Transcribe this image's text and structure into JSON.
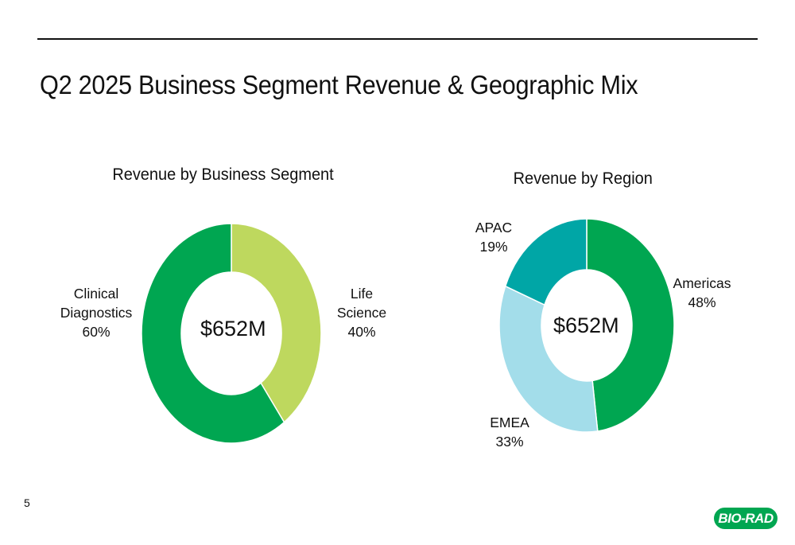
{
  "page_title": "Q2 2025 Business Segment Revenue & Geographic Mix",
  "page_number": "5",
  "logo_text": "BIO-RAD",
  "chart_data": [
    {
      "type": "pie",
      "donut": true,
      "title": "Revenue by Business Segment",
      "center_label": "$652M",
      "slices": [
        {
          "name": "Life",
          "name2": "Science",
          "value": 40,
          "label": "40%",
          "color": "#BED85E"
        },
        {
          "name": "Clinical",
          "name2": "Diagnostics",
          "value": 60,
          "label": "60%",
          "color": "#00A651"
        }
      ]
    },
    {
      "type": "pie",
      "donut": true,
      "title": "Revenue by Region",
      "center_label": "$652M",
      "slices": [
        {
          "name": "Americas",
          "value": 48,
          "label": "48%",
          "color": "#00A651"
        },
        {
          "name": "EMEA",
          "value": 33,
          "label": "33%",
          "color": "#A3DDEA"
        },
        {
          "name": "APAC",
          "value": 19,
          "label": "19%",
          "color": "#00A6A6"
        }
      ]
    }
  ]
}
